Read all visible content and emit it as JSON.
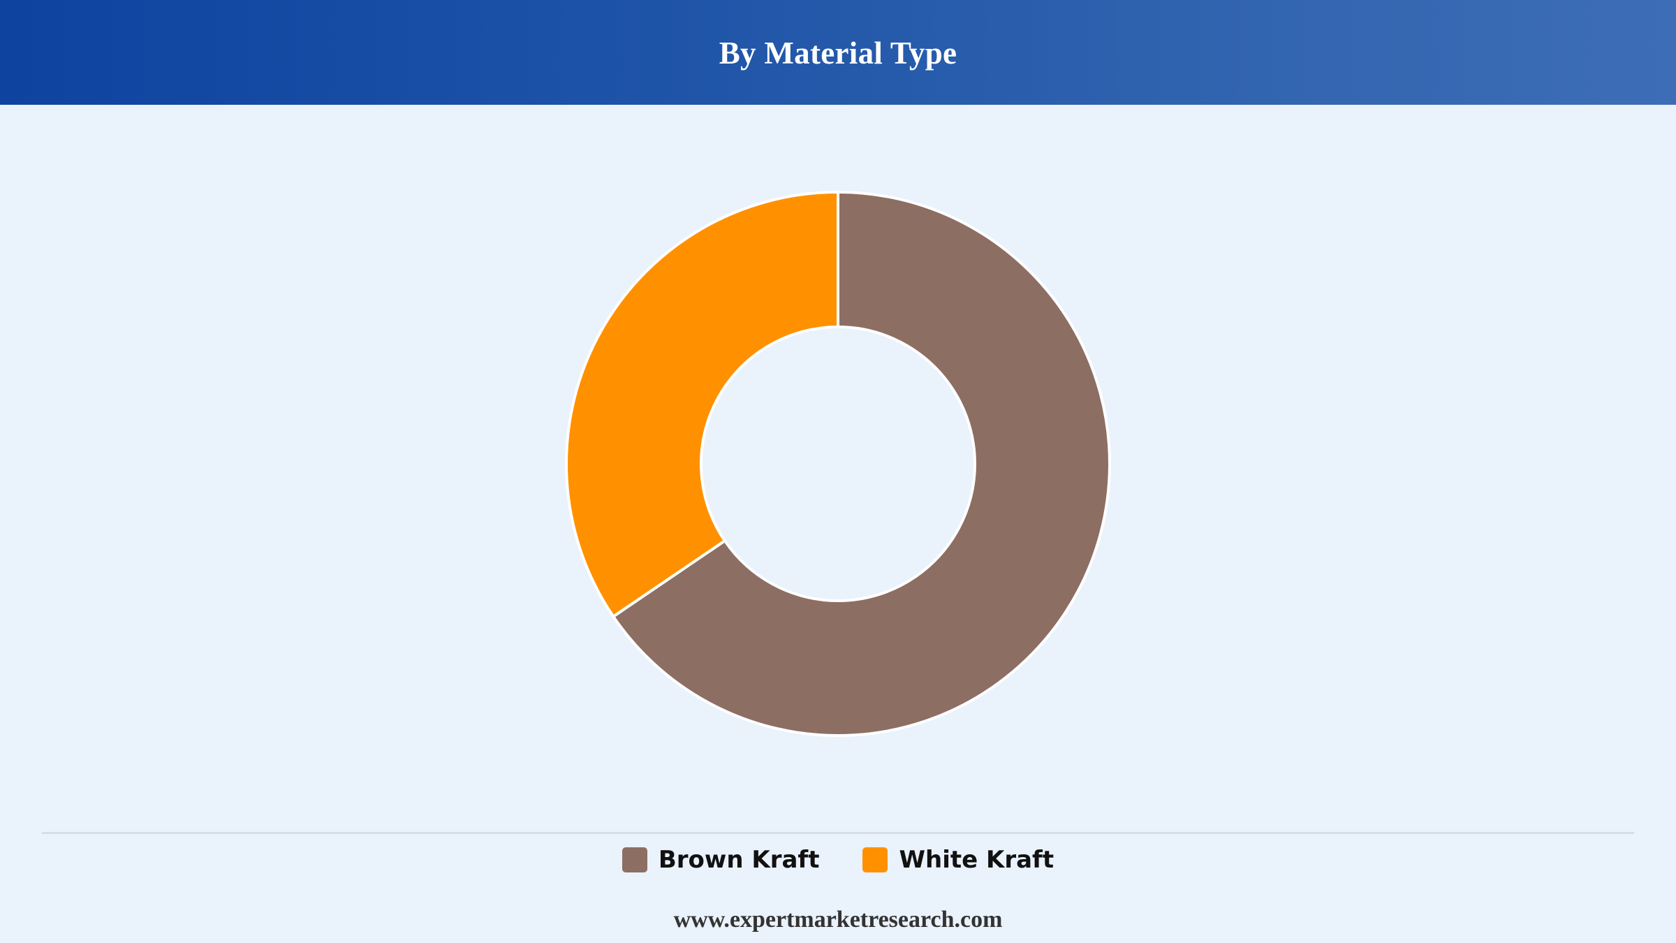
{
  "header": {
    "title": "By Material Type"
  },
  "chart_data": {
    "type": "pie",
    "variant": "donut",
    "title": "By Material Type",
    "categories": [
      "Brown Kraft",
      "White Kraft"
    ],
    "values": [
      65.5,
      34.5
    ],
    "colors": [
      "#8d6e63",
      "#ff9100"
    ],
    "legend_position": "bottom"
  },
  "legend": {
    "items": [
      {
        "label": "Brown Kraft",
        "color": "#8d6e63"
      },
      {
        "label": "White Kraft",
        "color": "#ff9100"
      }
    ]
  },
  "footer": {
    "source": "www.expertmarketresearch.com"
  }
}
